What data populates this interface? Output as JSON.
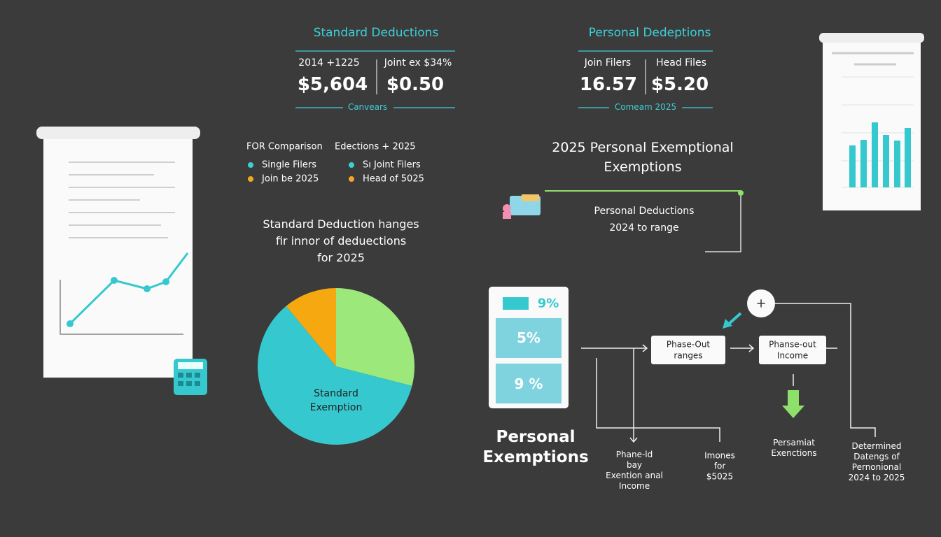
{
  "standard_deductions": {
    "title": "Standard Deductions",
    "col1_label": "2014 +1225",
    "col1_value": "$5,604",
    "col2_label": "Joint ex $34%",
    "col2_value": "$0.50",
    "footer": "Canvears"
  },
  "personal_deductions": {
    "title": "Personal Dedeptions",
    "col1_label": "Join Filers",
    "col1_value": "16.57",
    "col2_label": "Head Files",
    "col2_value": "$5.20",
    "footer": "Comeam 2025"
  },
  "comparison": {
    "heading1": "FOR Comparison",
    "heading2": "Edections + 2025",
    "items": [
      {
        "label": "Single Filers",
        "color": "#3ecfd6"
      },
      {
        "label": "Join be 2025",
        "color": "#f5a623"
      },
      {
        "label": "Sı Joint Filers",
        "color": "#3ecfd6"
      },
      {
        "label": "Head of 5025",
        "color": "#f5a623"
      }
    ]
  },
  "pie_caption": "Standard Deduction hanges\nfir innor of deduections\nfor 2025",
  "chart_data": {
    "type": "pie",
    "values": [
      29,
      60,
      11
    ],
    "colors": [
      "#9de87a",
      "#35c9cf",
      "#f5a80f"
    ],
    "slice_label": "Standard\nExemption"
  },
  "headline": "2025 Personal Exemptional\nExemptions",
  "personal_note": "Personal Deductions\n2024 to range",
  "flow": {
    "card": {
      "top": "9%",
      "middle": "5%",
      "bottom": "9 %"
    },
    "card_title": "Personal\nExemptions",
    "box1": "Phase-Out\nranges",
    "box2": "Phanse-out\nIncome",
    "plus": "+",
    "out1": "Phane-ld\nbay\nExention anal\nIncome",
    "out2": "Imones\nfor\n$5025",
    "out3": "Persamiat\nExenctions",
    "out4": "Determined\nDatengs of\nPernonional\n2024 to 2025"
  }
}
